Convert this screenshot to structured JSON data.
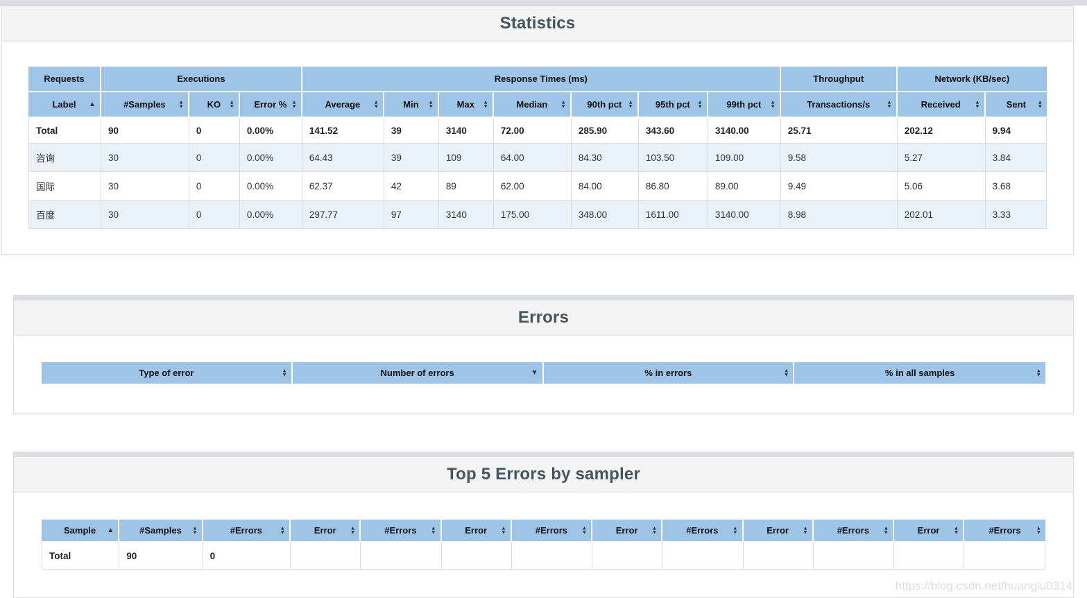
{
  "colors": {
    "header_blue": "#9ec4e8",
    "row_stripe": "#e9f1f9",
    "panel_title": "#44555f"
  },
  "watermark": {
    "text": "https://blog.csdn.net/huanglu0314"
  },
  "statistics_panel": {
    "title": "Statistics",
    "group_headers": [
      {
        "label": "Requests",
        "colspan": 1
      },
      {
        "label": "Executions",
        "colspan": 3
      },
      {
        "label": "Response Times (ms)",
        "colspan": 7
      },
      {
        "label": "Throughput",
        "colspan": 1
      },
      {
        "label": "Network (KB/sec)",
        "colspan": 2
      }
    ],
    "columns": [
      {
        "label": "Label",
        "sort": "asc"
      },
      {
        "label": "#Samples",
        "sort": "both"
      },
      {
        "label": "KO",
        "sort": "both"
      },
      {
        "label": "Error %",
        "sort": "both"
      },
      {
        "label": "Average",
        "sort": "both"
      },
      {
        "label": "Min",
        "sort": "both"
      },
      {
        "label": "Max",
        "sort": "both"
      },
      {
        "label": "Median",
        "sort": "both"
      },
      {
        "label": "90th pct",
        "sort": "both"
      },
      {
        "label": "95th pct",
        "sort": "both"
      },
      {
        "label": "99th pct",
        "sort": "both"
      },
      {
        "label": "Transactions/s",
        "sort": "both"
      },
      {
        "label": "Received",
        "sort": "both"
      },
      {
        "label": "Sent",
        "sort": "both"
      }
    ],
    "rows": [
      {
        "emphasis": true,
        "cells": [
          "Total",
          "90",
          "0",
          "0.00%",
          "141.52",
          "39",
          "3140",
          "72.00",
          "285.90",
          "343.60",
          "3140.00",
          "25.71",
          "202.12",
          "9.94"
        ]
      },
      {
        "cells": [
          "咨询",
          "30",
          "0",
          "0.00%",
          "64.43",
          "39",
          "109",
          "64.00",
          "84.30",
          "103.50",
          "109.00",
          "9.58",
          "5.27",
          "3.84"
        ]
      },
      {
        "cells": [
          "国际",
          "30",
          "0",
          "0.00%",
          "62.37",
          "42",
          "89",
          "62.00",
          "84.00",
          "86.80",
          "89.00",
          "9.49",
          "5.06",
          "3.68"
        ]
      },
      {
        "cells": [
          "百度",
          "30",
          "0",
          "0.00%",
          "297.77",
          "97",
          "3140",
          "175.00",
          "348.00",
          "1611.00",
          "3140.00",
          "8.98",
          "202.01",
          "3.33"
        ]
      }
    ]
  },
  "errors_panel": {
    "title": "Errors",
    "columns": [
      {
        "label": "Type of error",
        "sort": "both"
      },
      {
        "label": "Number of errors",
        "sort": "desc"
      },
      {
        "label": "% in errors",
        "sort": "both"
      },
      {
        "label": "% in all samples",
        "sort": "both"
      }
    ],
    "rows": []
  },
  "top5_panel": {
    "title": "Top 5 Errors by sampler",
    "columns": [
      {
        "label": "Sample",
        "sort": "asc"
      },
      {
        "label": "#Samples",
        "sort": "both"
      },
      {
        "label": "#Errors",
        "sort": "both"
      },
      {
        "label": "Error",
        "sort": "both"
      },
      {
        "label": "#Errors",
        "sort": "both"
      },
      {
        "label": "Error",
        "sort": "both"
      },
      {
        "label": "#Errors",
        "sort": "both"
      },
      {
        "label": "Error",
        "sort": "both"
      },
      {
        "label": "#Errors",
        "sort": "both"
      },
      {
        "label": "Error",
        "sort": "both"
      },
      {
        "label": "#Errors",
        "sort": "both"
      },
      {
        "label": "Error",
        "sort": "both"
      },
      {
        "label": "#Errors",
        "sort": "both"
      }
    ],
    "rows": [
      {
        "emphasis": true,
        "cells": [
          "Total",
          "90",
          "0",
          "",
          "",
          "",
          "",
          "",
          "",
          "",
          "",
          "",
          ""
        ]
      }
    ]
  }
}
